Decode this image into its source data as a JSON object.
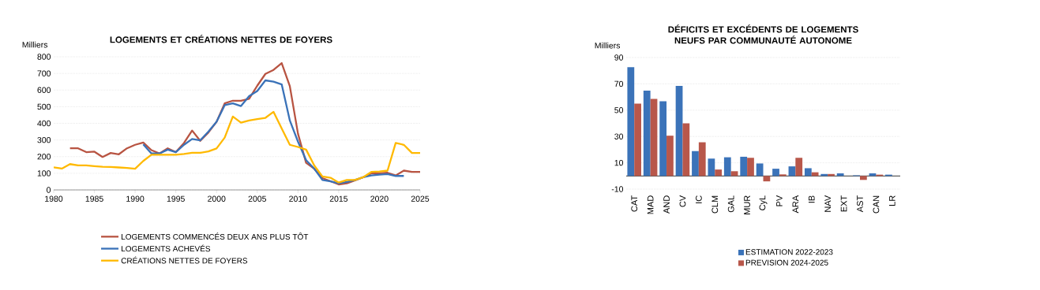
{
  "chart_data": [
    {
      "type": "line",
      "title": "LOGEMENTS ET CRÉATIONS NETTES DE FOYERS",
      "ylabel": "Milliers",
      "x": [
        1980,
        1981,
        1982,
        1983,
        1984,
        1985,
        1986,
        1987,
        1988,
        1989,
        1990,
        1991,
        1992,
        1993,
        1994,
        1995,
        1996,
        1997,
        1998,
        1999,
        2000,
        2001,
        2002,
        2003,
        2004,
        2005,
        2006,
        2007,
        2008,
        2009,
        2010,
        2011,
        2012,
        2013,
        2014,
        2015,
        2016,
        2017,
        2018,
        2019,
        2020,
        2021,
        2022,
        2023,
        2024,
        2025
      ],
      "series": [
        {
          "name": "LOGEMENTS COMMENCÉS DEUX ANS PLUS TÔT",
          "color": "#b85442",
          "values": [
            null,
            null,
            250,
            250,
            227,
            230,
            198,
            222,
            214,
            250,
            271,
            285,
            239,
            219,
            250,
            227,
            282,
            357,
            295,
            345,
            409,
            520,
            536,
            536,
            547,
            626,
            697,
            721,
            762,
            623,
            338,
            163,
            127,
            71,
            52,
            33,
            40,
            57,
            76,
            100,
            100,
            103,
            87,
            116,
            108,
            108
          ]
        },
        {
          "name": "LOGEMENTS ACHEVÉS",
          "color": "#3a72b8",
          "values": [
            null,
            null,
            null,
            null,
            null,
            null,
            null,
            null,
            null,
            null,
            null,
            274,
            219,
            219,
            242,
            227,
            271,
            306,
            298,
            350,
            409,
            509,
            520,
            504,
            563,
            594,
            658,
            650,
            634,
            417,
            290,
            179,
            128,
            60,
            52,
            40,
            48,
            60,
            76,
            87,
            92,
            95,
            84,
            84,
            null,
            null
          ]
        },
        {
          "name": "CRÉATIONS NETTES DE FOYERS",
          "color": "#ffb900",
          "values": [
            136,
            128,
            155,
            147,
            147,
            143,
            139,
            138,
            135,
            132,
            127,
            174,
            211,
            211,
            211,
            211,
            216,
            223,
            223,
            231,
            249,
            314,
            441,
            404,
            417,
            425,
            433,
            469,
            369,
            271,
            258,
            242,
            147,
            81,
            73,
            44,
            60,
            60,
            76,
            108,
            111,
            116,
            282,
            271,
            222,
            222
          ]
        }
      ],
      "xlim": [
        1980,
        2025
      ],
      "xticks": [
        1980,
        1985,
        1990,
        1995,
        2000,
        2005,
        2010,
        2015,
        2020,
        2025
      ],
      "ylim": [
        0,
        800
      ],
      "yticks": [
        0,
        100,
        200,
        300,
        400,
        500,
        600,
        700,
        800
      ],
      "grid": "y",
      "legend": "bottom"
    },
    {
      "type": "bar",
      "title": "DÉFICITS ET EXCÉDENTS DE LOGEMENTS NEUFS PAR COMMUNAUTÉ AUTONOME",
      "ylabel": "Milliers",
      "categories": [
        "CAT",
        "MAD",
        "AND",
        "CV",
        "IC",
        "CLM",
        "GAL",
        "MUR",
        "CyL",
        "PV",
        "ARA",
        "IB",
        "NAV",
        "EXT",
        "AST",
        "CAN",
        "LR"
      ],
      "series": [
        {
          "name": "ESTIMATION 2022-2023",
          "color": "#3b73b9",
          "values": [
            82.6,
            64.9,
            56.8,
            68.4,
            18.9,
            13.2,
            14.2,
            14.6,
            9.5,
            5.5,
            7.3,
            5.9,
            1.5,
            2.0,
            0.5,
            2.0,
            1.0
          ]
        },
        {
          "name": "PREVISION 2024-2025",
          "color": "#b8574a",
          "values": [
            55.0,
            58.6,
            30.6,
            40.0,
            25.6,
            4.9,
            3.6,
            13.8,
            -4.1,
            1.2,
            13.8,
            2.8,
            1.5,
            null,
            -3.0,
            1.0,
            null
          ]
        }
      ],
      "ylim": [
        -10,
        90
      ],
      "yticks": [
        -10,
        10,
        30,
        50,
        70,
        90
      ],
      "grid": "y",
      "legend": "bottom"
    }
  ]
}
